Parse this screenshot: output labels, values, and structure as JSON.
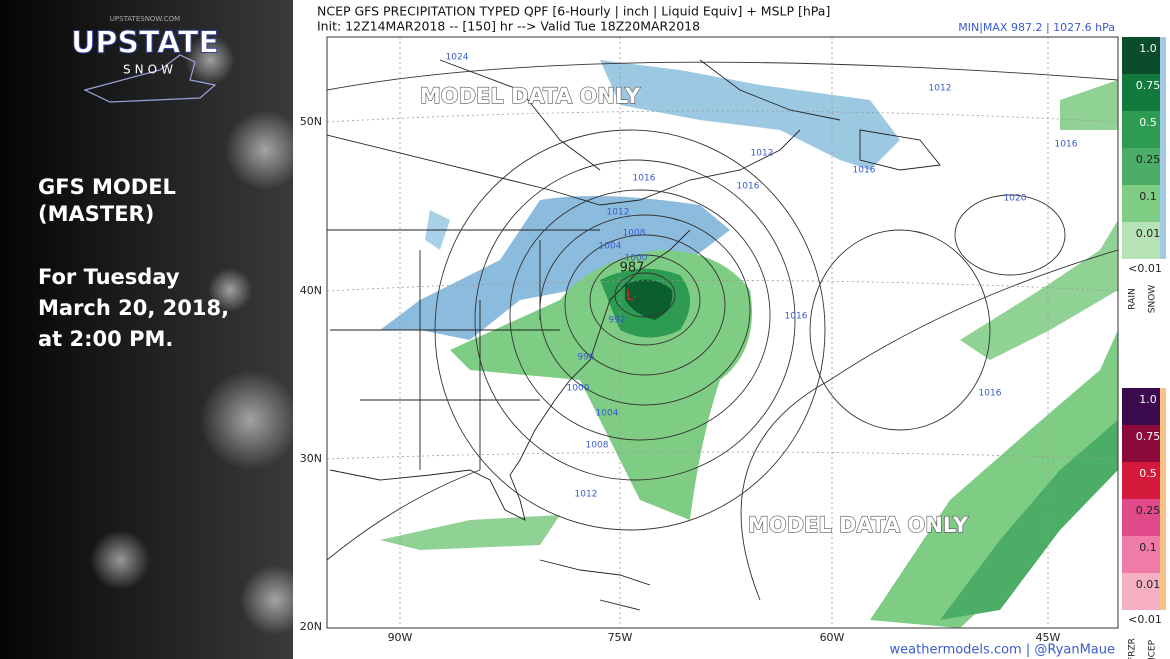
{
  "sidebar": {
    "site": "UPSTATESNOW.COM",
    "logo": "UPSTATE",
    "logo_sub": "SNOW",
    "heading": [
      "GFS MODEL",
      "(MASTER)"
    ],
    "forecast": [
      "For Tuesday",
      "March 20, 2018,",
      "at 2:00 PM."
    ]
  },
  "map": {
    "title": "NCEP GFS PRECIPITATION TYPED QPF [6-Hourly | inch | Liquid Equiv] + MSLP [hPa]",
    "init": "Init: 12Z14MAR2018 -- [150] hr --> Valid Tue 18Z20MAR2018",
    "minmax": "MIN|MAX 987.2 | 1027.6 hPa",
    "watermarks": [
      "MODEL DATA ONLY",
      "MODEL DATA ONLY"
    ],
    "lat_labels": [
      "50N",
      "40N",
      "30N",
      "20N"
    ],
    "lon_labels": [
      "90W",
      "75W",
      "60W",
      "45W"
    ],
    "isobar_labels": [
      "1024",
      "1012",
      "1012",
      "1016",
      "1016",
      "1016",
      "1016",
      "1020",
      "1012",
      "1008",
      "1004",
      "1000",
      "992",
      "996",
      "1000",
      "1004",
      "1008",
      "1012",
      "1016",
      "1016"
    ],
    "low_label": "987",
    "low_marker": "L",
    "credit": "weathermodels.com | @RyanMaue"
  },
  "legend": {
    "rain_snow": {
      "levels": [
        "1.0",
        "0.75",
        "0.5",
        "0.25",
        "0.1",
        "0.01"
      ],
      "below": "<0.01",
      "types": [
        "RAIN",
        "SNOW"
      ]
    },
    "frzr_icep": {
      "levels": [
        "1.0",
        "0.75",
        "0.5",
        "0.25",
        "0.1",
        "0.01"
      ],
      "below": "<0.01",
      "types": [
        "FRZR",
        "ICEP"
      ]
    }
  }
}
